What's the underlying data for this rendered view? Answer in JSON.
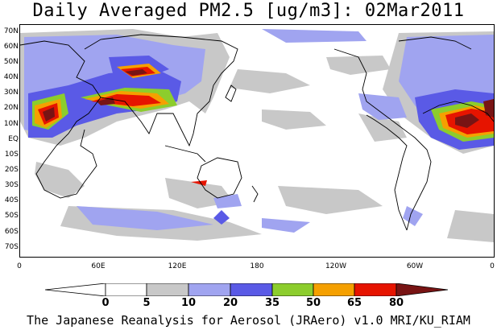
{
  "title": "Daily Averaged PM2.5 [ug/m3]: 02Mar2011",
  "footer": "The Japanese Reanalysis for Aerosol (JRAero) v1.0 MRI/KU_RIAM",
  "lat_labels": [
    "70N",
    "60N",
    "50N",
    "40N",
    "30N",
    "20N",
    "10N",
    "EQ",
    "10S",
    "20S",
    "30S",
    "40S",
    "50S",
    "60S",
    "70S"
  ],
  "lon_labels": [
    "0",
    "60E",
    "120E",
    "180",
    "120W",
    "60W",
    "0"
  ],
  "colorbar": {
    "levels": [
      "0",
      "5",
      "10",
      "20",
      "35",
      "50",
      "65",
      "80"
    ],
    "colors": [
      "#ffffff",
      "#c8c8c8",
      "#a0a4f0",
      "#5a5ae6",
      "#8ccd2d",
      "#f5a000",
      "#e61400",
      "#781414"
    ]
  }
}
